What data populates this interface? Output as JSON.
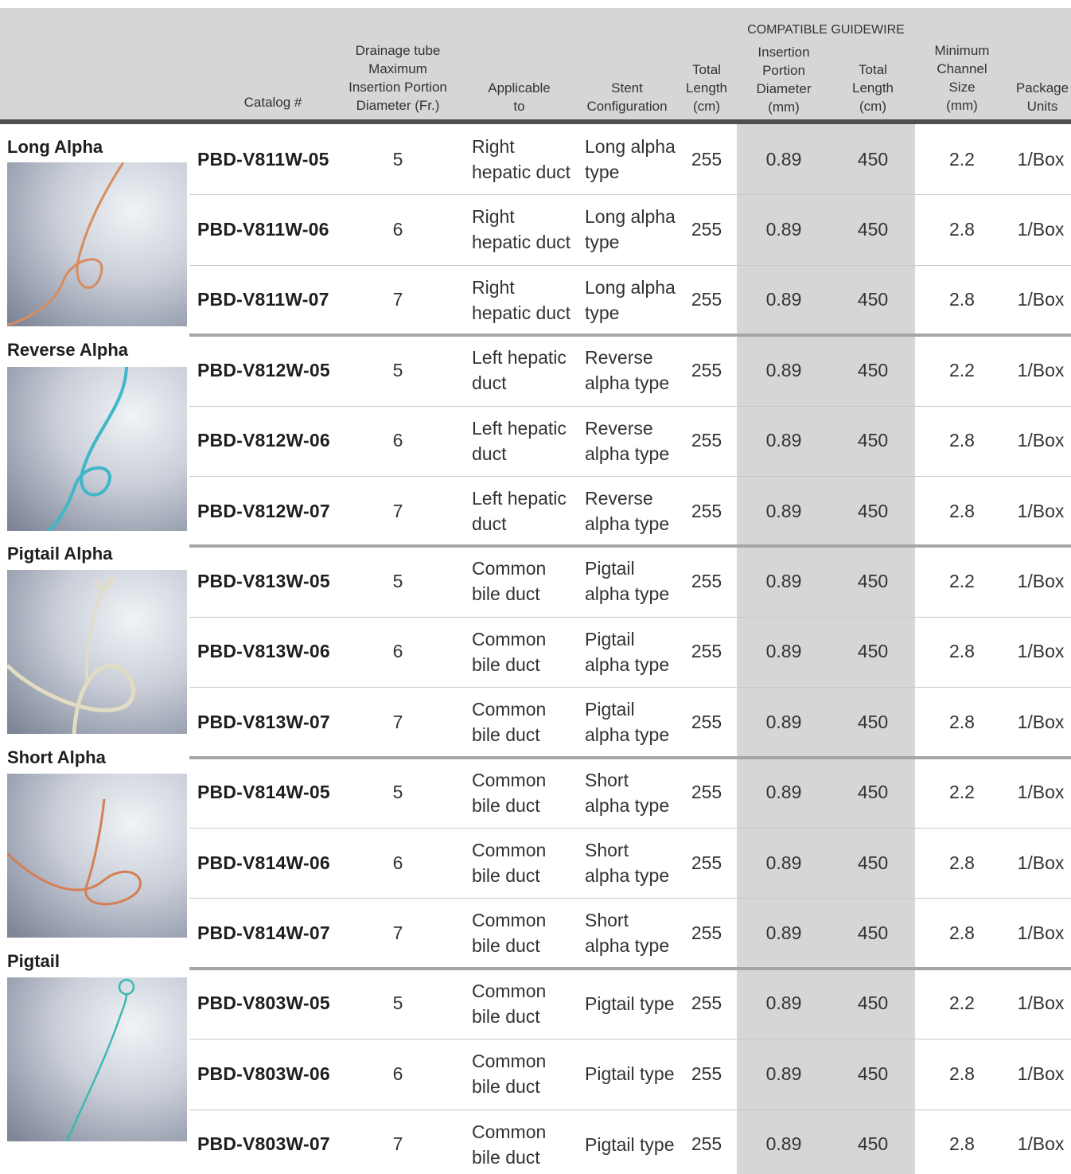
{
  "header": {
    "catalog": "Catalog #",
    "drainage": "Drainage tube\nMaximum\nInsertion Portion\nDiameter (Fr.)",
    "applicable": "Applicable\nto",
    "stent": "Stent\nConfiguration",
    "total_length": "Total\nLength\n(cm)",
    "guidewire_group": "COMPATIBLE GUIDEWIRE",
    "gw_diameter": "Insertion\nPortion\nDiameter\n(mm)",
    "gw_length": "Total\nLength\n(cm)",
    "min_channel": "Minimum\nChannel\nSize\n(mm)",
    "package": "Package\nUnits"
  },
  "colors": {
    "header_band": "#d6d6d6",
    "header_rule": "#4f4f4f",
    "guidewire_column": "#d6d6d6",
    "group_divider": "#a6a6a6",
    "catheter_orange": "#d88c5e",
    "catheter_blue": "#3fb7c8",
    "catheter_cream": "#e2dcc2",
    "catheter_copper": "#d47f55",
    "catheter_teal": "#3ab9b1"
  },
  "groups": [
    {
      "label": "Long Alpha",
      "photo_icon": "long-alpha-catheter-photo",
      "rows": [
        {
          "catalog": "PBD-V811W-05",
          "fr": "5",
          "applicable": "Right\nhepatic duct",
          "config": "Long alpha\ntype",
          "length": "255",
          "gw_dia": "0.89",
          "gw_len": "450",
          "channel": "2.2",
          "package": "1/Box"
        },
        {
          "catalog": "PBD-V811W-06",
          "fr": "6",
          "applicable": "Right\nhepatic duct",
          "config": "Long alpha\ntype",
          "length": "255",
          "gw_dia": "0.89",
          "gw_len": "450",
          "channel": "2.8",
          "package": "1/Box"
        },
        {
          "catalog": "PBD-V811W-07",
          "fr": "7",
          "applicable": "Right\nhepatic duct",
          "config": "Long alpha\ntype",
          "length": "255",
          "gw_dia": "0.89",
          "gw_len": "450",
          "channel": "2.8",
          "package": "1/Box"
        }
      ]
    },
    {
      "label": "Reverse Alpha",
      "photo_icon": "reverse-alpha-catheter-photo",
      "rows": [
        {
          "catalog": "PBD-V812W-05",
          "fr": "5",
          "applicable": "Left hepatic\nduct",
          "config": "Reverse\nalpha type",
          "length": "255",
          "gw_dia": "0.89",
          "gw_len": "450",
          "channel": "2.2",
          "package": "1/Box"
        },
        {
          "catalog": "PBD-V812W-06",
          "fr": "6",
          "applicable": "Left hepatic\nduct",
          "config": "Reverse\nalpha type",
          "length": "255",
          "gw_dia": "0.89",
          "gw_len": "450",
          "channel": "2.8",
          "package": "1/Box"
        },
        {
          "catalog": "PBD-V812W-07",
          "fr": "7",
          "applicable": "Left hepatic\nduct",
          "config": "Reverse\nalpha type",
          "length": "255",
          "gw_dia": "0.89",
          "gw_len": "450",
          "channel": "2.8",
          "package": "1/Box"
        }
      ]
    },
    {
      "label": "Pigtail Alpha",
      "photo_icon": "pigtail-alpha-catheter-photo",
      "rows": [
        {
          "catalog": "PBD-V813W-05",
          "fr": "5",
          "applicable": "Common\nbile duct",
          "config": "Pigtail\nalpha type",
          "length": "255",
          "gw_dia": "0.89",
          "gw_len": "450",
          "channel": "2.2",
          "package": "1/Box"
        },
        {
          "catalog": "PBD-V813W-06",
          "fr": "6",
          "applicable": "Common\nbile duct",
          "config": "Pigtail\nalpha type",
          "length": "255",
          "gw_dia": "0.89",
          "gw_len": "450",
          "channel": "2.8",
          "package": "1/Box"
        },
        {
          "catalog": "PBD-V813W-07",
          "fr": "7",
          "applicable": "Common\nbile duct",
          "config": "Pigtail\nalpha type",
          "length": "255",
          "gw_dia": "0.89",
          "gw_len": "450",
          "channel": "2.8",
          "package": "1/Box"
        }
      ]
    },
    {
      "label": "Short Alpha",
      "photo_icon": "short-alpha-catheter-photo",
      "rows": [
        {
          "catalog": "PBD-V814W-05",
          "fr": "5",
          "applicable": "Common\nbile duct",
          "config": "Short\nalpha type",
          "length": "255",
          "gw_dia": "0.89",
          "gw_len": "450",
          "channel": "2.2",
          "package": "1/Box"
        },
        {
          "catalog": "PBD-V814W-06",
          "fr": "6",
          "applicable": "Common\nbile duct",
          "config": "Short\nalpha type",
          "length": "255",
          "gw_dia": "0.89",
          "gw_len": "450",
          "channel": "2.8",
          "package": "1/Box"
        },
        {
          "catalog": "PBD-V814W-07",
          "fr": "7",
          "applicable": "Common\nbile duct",
          "config": "Short\nalpha type",
          "length": "255",
          "gw_dia": "0.89",
          "gw_len": "450",
          "channel": "2.8",
          "package": "1/Box"
        }
      ]
    },
    {
      "label": "Pigtail",
      "photo_icon": "pigtail-catheter-photo",
      "rows": [
        {
          "catalog": "PBD-V803W-05",
          "fr": "5",
          "applicable": "Common\nbile duct",
          "config": "Pigtail type",
          "length": "255",
          "gw_dia": "0.89",
          "gw_len": "450",
          "channel": "2.2",
          "package": "1/Box"
        },
        {
          "catalog": "PBD-V803W-06",
          "fr": "6",
          "applicable": "Common\nbile duct",
          "config": "Pigtail type",
          "length": "255",
          "gw_dia": "0.89",
          "gw_len": "450",
          "channel": "2.8",
          "package": "1/Box"
        },
        {
          "catalog": "PBD-V803W-07",
          "fr": "7",
          "applicable": "Common\nbile duct",
          "config": "Pigtail type",
          "length": "255",
          "gw_dia": "0.89",
          "gw_len": "450",
          "channel": "2.8",
          "package": "1/Box"
        }
      ]
    }
  ]
}
